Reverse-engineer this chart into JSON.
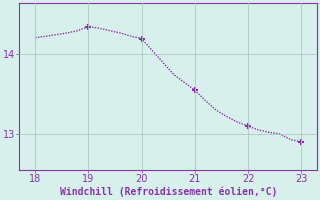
{
  "x": [
    18,
    18.2,
    18.4,
    18.6,
    18.8,
    19,
    19.2,
    19.4,
    19.6,
    19.8,
    20,
    20.2,
    20.4,
    20.6,
    20.8,
    21,
    21.2,
    21.4,
    21.6,
    21.8,
    22,
    22.2,
    22.4,
    22.6,
    22.8,
    23
  ],
  "y": [
    14.21,
    14.23,
    14.25,
    14.27,
    14.3,
    14.35,
    14.33,
    14.3,
    14.27,
    14.23,
    14.2,
    14.05,
    13.9,
    13.75,
    13.65,
    13.55,
    13.42,
    13.3,
    13.22,
    13.15,
    13.1,
    13.05,
    13.02,
    13.0,
    12.93,
    12.9
  ],
  "line_color": "#8833aa",
  "marker_x": [
    19,
    20,
    21,
    22,
    23
  ],
  "marker_y": [
    14.35,
    14.2,
    13.55,
    13.1,
    12.9
  ],
  "bg_color": "#d8f0ec",
  "grid_color": "#b0c8c4",
  "spine_color": "#8833aa",
  "tick_color": "#8833aa",
  "xlabel": "Windchill (Refroidissement éolien,°C)",
  "yticks": [
    13,
    14
  ],
  "xticks": [
    18,
    19,
    20,
    21,
    22,
    23
  ],
  "xlim": [
    17.7,
    23.3
  ],
  "ylim": [
    12.55,
    14.65
  ]
}
